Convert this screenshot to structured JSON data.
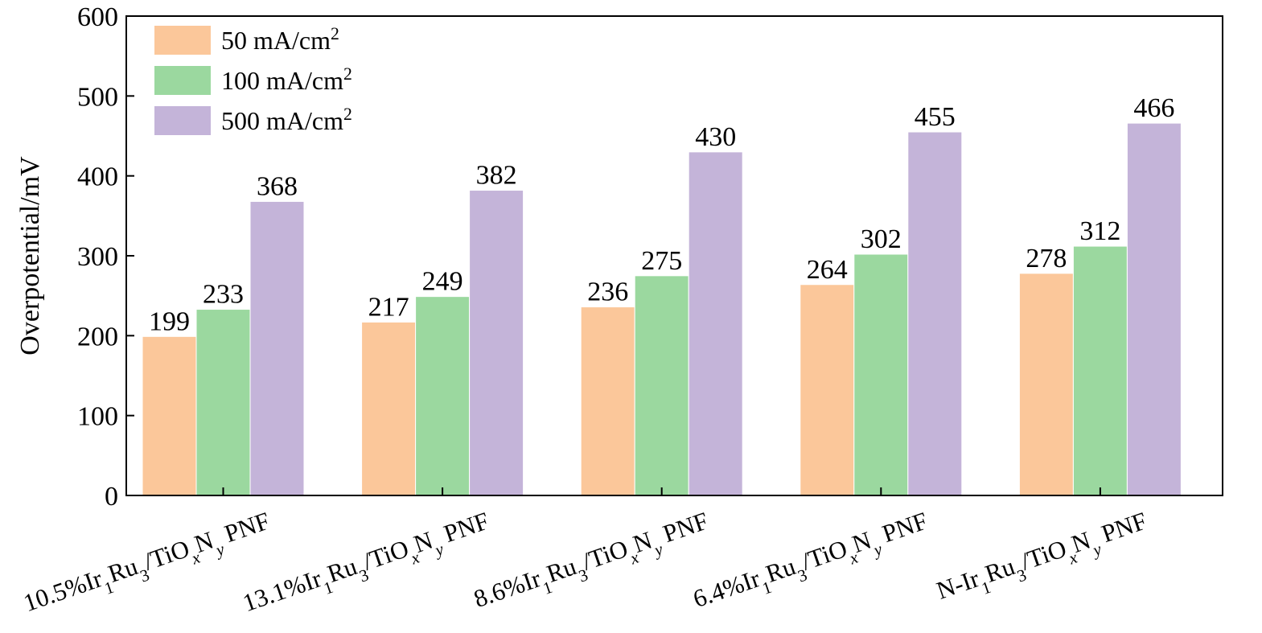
{
  "chart_data": {
    "type": "bar",
    "ylabel": "Overpotential/mV",
    "ylim": [
      0,
      600
    ],
    "yticks": [
      0,
      100,
      200,
      300,
      400,
      500,
      600
    ],
    "categories": [
      {
        "pre": "10.5%Ir",
        "s1": "1",
        "mid": "Ru",
        "s2": "3",
        "post": "/TiO",
        "s3": "x",
        "n": "N",
        "s4": "y",
        "end": " PNF"
      },
      {
        "pre": "13.1%Ir",
        "s1": "1",
        "mid": "Ru",
        "s2": "3",
        "post": "/TiO",
        "s3": "x",
        "n": "N",
        "s4": "y",
        "end": " PNF"
      },
      {
        "pre": "8.6%Ir",
        "s1": "1",
        "mid": "Ru",
        "s2": "3",
        "post": "/TiO",
        "s3": "x",
        "n": "N",
        "s4": "y",
        "end": " PNF"
      },
      {
        "pre": "6.4%Ir",
        "s1": "1",
        "mid": "Ru",
        "s2": "3",
        "post": "/TiO",
        "s3": "x",
        "n": "N",
        "s4": "y",
        "end": " PNF"
      },
      {
        "pre": "N-Ir",
        "s1": "1",
        "mid": "Ru",
        "s2": "3",
        "post": "/TiO",
        "s3": "x",
        "n": "N",
        "s4": "y",
        "end": " PNF"
      }
    ],
    "series": [
      {
        "name": "50 mA/cm",
        "sup": "2",
        "color": "#fbc79a",
        "values": [
          199,
          217,
          236,
          264,
          278
        ]
      },
      {
        "name": "100 mA/cm",
        "sup": "2",
        "color": "#9bd89f",
        "values": [
          233,
          249,
          275,
          302,
          312
        ]
      },
      {
        "name": "500 mA/cm",
        "sup": "2",
        "color": "#c4b4d9",
        "values": [
          368,
          382,
          430,
          455,
          466
        ]
      }
    ],
    "legend_position": "top-left",
    "grid": false
  }
}
